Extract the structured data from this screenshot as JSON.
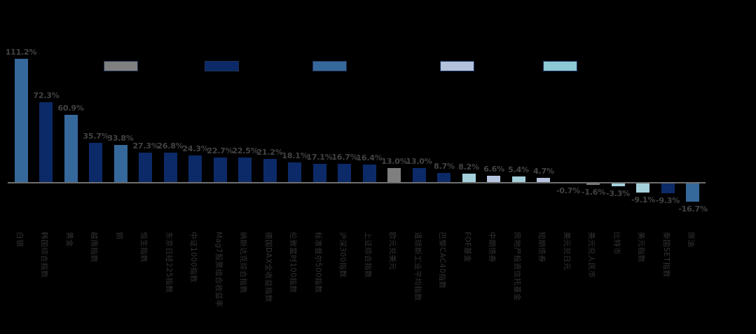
{
  "page": {
    "background_color": "#000000",
    "title": ""
  },
  "legend": {
    "swatches": [
      {
        "name": "legend-swatch-gray",
        "color": "#808080",
        "border": "#1E3054"
      },
      {
        "name": "legend-swatch-navy",
        "color": "#0C2A68",
        "border": "#1E3054"
      },
      {
        "name": "legend-swatch-steel-blue",
        "color": "#36699B",
        "border": "#1E3054"
      },
      {
        "name": "legend-swatch-periwinkle",
        "color": "#B3C1DD",
        "border": "#16325C"
      },
      {
        "name": "legend-swatch-cyan",
        "color": "#8CC9D5",
        "border": "#16325C"
      }
    ]
  },
  "chart_data": {
    "type": "bar",
    "title": "",
    "xlabel": "",
    "ylabel": "",
    "ylim": [
      -30,
      125
    ],
    "grid": false,
    "legend_position": "top",
    "categories": [
      "白银",
      "韩国综合指数",
      "黄金",
      "越南指数",
      "铜",
      "恒生指数",
      "东京日经225指数",
      "中证1000指数",
      "Mag7股票组合收益率",
      "纳斯达克综合指数",
      "德国DAX全收益指数",
      "伦敦富时100指数",
      "标准普尔500指数",
      "沪深300指数",
      "上证综合指数",
      "欧元兑美元",
      "道琼斯工业平均指数",
      "巴黎CAC40指数",
      "FOF基金",
      "中期债券",
      "房地产投资信托基金",
      "短期债券",
      "美元兑日元",
      "美元兑人民币",
      "比特币",
      "美元指数",
      "泰国SET指数",
      "原油"
    ],
    "values": [
      111.2,
      72.3,
      60.9,
      35.7,
      33.8,
      27.3,
      26.8,
      24.3,
      22.7,
      22.5,
      21.2,
      18.1,
      17.1,
      16.7,
      16.4,
      13.0,
      13.0,
      8.7,
      8.2,
      6.6,
      5.4,
      4.7,
      -0.7,
      -1.6,
      -3.3,
      -9.1,
      -9.3,
      -16.7
    ],
    "value_labels": [
      "111.2%",
      "72.3%",
      "60.9%",
      "35.7%",
      "33.8%",
      "27.3%",
      "26.8%",
      "24.3%",
      "22.7%",
      "22.5%",
      "21.2%",
      "18.1%",
      "17.1%",
      "16.7%",
      "16.4%",
      "13.0%",
      "13.0%",
      "8.7%",
      "8.2%",
      "6.6%",
      "5.4%",
      "4.7%",
      "-0.7%",
      "-1.6%",
      "-3.3%",
      "-9.1%",
      "-9.3%",
      "-16.7%"
    ],
    "bar_color_keys": [
      "steel",
      "navy",
      "steel",
      "navy",
      "steel",
      "navy",
      "navy",
      "navy",
      "navy",
      "navy",
      "navy",
      "navy",
      "navy",
      "navy",
      "navy",
      "gray",
      "navy",
      "navy",
      "cyan",
      "periwinkle",
      "cyan",
      "periwinkle",
      "gray",
      "gray",
      "cyan",
      "cyan",
      "navy",
      "steel"
    ],
    "palette": {
      "steel": "#36699B",
      "navy": "#0C2A68",
      "gray": "#7F7F7F",
      "cyan": "#A4D0DC",
      "periwinkle": "#B6C4E0"
    },
    "axis_color": "#6F6F6F",
    "value_label_color": "#434343",
    "tick_label_color": "#323232"
  }
}
